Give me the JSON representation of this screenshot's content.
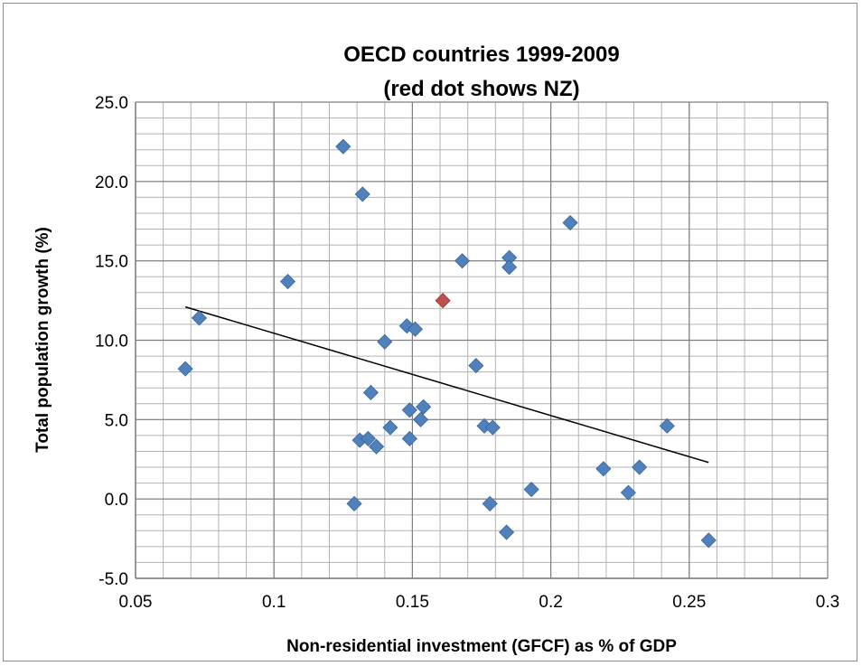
{
  "chart_data": {
    "type": "scatter",
    "title": "OECD countries 1999-2009",
    "subtitle": "(red dot shows NZ)",
    "xlabel": "Non-residential investment (GFCF) as % of GDP",
    "ylabel": "Total population growth (%)",
    "xlim": [
      0.05,
      0.3
    ],
    "ylim": [
      -5.0,
      25.0
    ],
    "x_ticks": [
      "0.05",
      "0.1",
      "0.15",
      "0.2",
      "0.25",
      "0.3"
    ],
    "y_ticks": [
      "-5.0",
      "0.0",
      "5.0",
      "10.0",
      "15.0",
      "20.0",
      "25.0"
    ],
    "x_tick_values": [
      0.05,
      0.1,
      0.15,
      0.2,
      0.25,
      0.3
    ],
    "y_tick_values": [
      -5,
      0,
      5,
      10,
      15,
      20,
      25
    ],
    "grid": true,
    "legend": "none",
    "point_color": "#4f81bd",
    "highlight_color": "#c0504d",
    "trendline_color": "#000000",
    "points": [
      {
        "x": 0.068,
        "y": 8.2
      },
      {
        "x": 0.073,
        "y": 11.4
      },
      {
        "x": 0.105,
        "y": 13.7
      },
      {
        "x": 0.125,
        "y": 22.2
      },
      {
        "x": 0.129,
        "y": -0.3
      },
      {
        "x": 0.131,
        "y": 3.7
      },
      {
        "x": 0.132,
        "y": 19.2
      },
      {
        "x": 0.134,
        "y": 3.8
      },
      {
        "x": 0.135,
        "y": 6.7
      },
      {
        "x": 0.137,
        "y": 3.3
      },
      {
        "x": 0.14,
        "y": 9.9
      },
      {
        "x": 0.142,
        "y": 4.5
      },
      {
        "x": 0.148,
        "y": 10.9
      },
      {
        "x": 0.149,
        "y": 5.6
      },
      {
        "x": 0.149,
        "y": 3.8
      },
      {
        "x": 0.151,
        "y": 10.7
      },
      {
        "x": 0.153,
        "y": 5.0
      },
      {
        "x": 0.154,
        "y": 5.8
      },
      {
        "x": 0.161,
        "y": 12.5,
        "highlight": true
      },
      {
        "x": 0.168,
        "y": 15.0
      },
      {
        "x": 0.173,
        "y": 8.4
      },
      {
        "x": 0.176,
        "y": 4.6
      },
      {
        "x": 0.178,
        "y": -0.3
      },
      {
        "x": 0.179,
        "y": 4.5
      },
      {
        "x": 0.184,
        "y": -2.1
      },
      {
        "x": 0.185,
        "y": 15.2
      },
      {
        "x": 0.185,
        "y": 14.6
      },
      {
        "x": 0.193,
        "y": 0.6
      },
      {
        "x": 0.207,
        "y": 17.4
      },
      {
        "x": 0.219,
        "y": 1.9
      },
      {
        "x": 0.228,
        "y": 0.4
      },
      {
        "x": 0.232,
        "y": 2.0
      },
      {
        "x": 0.242,
        "y": 4.6
      },
      {
        "x": 0.257,
        "y": -2.6
      }
    ],
    "trendline": {
      "x1": 0.068,
      "y1": 12.1,
      "x2": 0.257,
      "y2": 2.3
    }
  }
}
